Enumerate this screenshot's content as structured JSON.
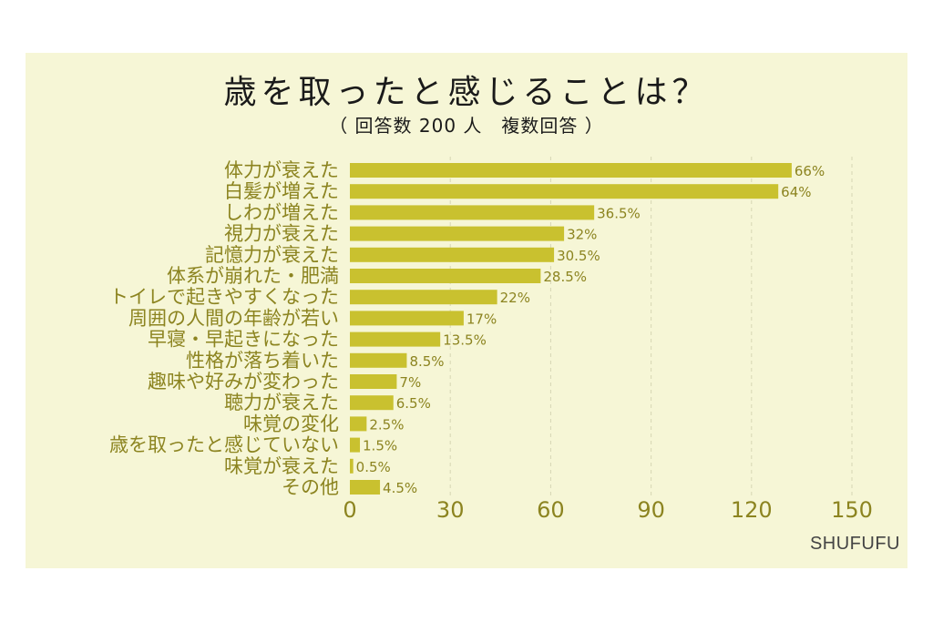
{
  "header": {
    "title": "歳を取ったと感じることは？",
    "subtitle": "（ 回答数 200 人　複数回答 ）"
  },
  "source": "SHUFUFU",
  "colors": {
    "background": "#f6f6d6",
    "bar": "#c9c12f",
    "text": "#8c8420"
  },
  "chart_data": {
    "type": "bar",
    "orientation": "horizontal",
    "title": "歳を取ったと感じることは？",
    "subtitle": "（ 回答数 200 人　複数回答 ）",
    "categories": [
      "体力が衰えた",
      "白髪が増えた",
      "しわが増えた",
      "視力が衰えた",
      "記憶力が衰えた",
      "体系が崩れた・肥満",
      "トイレで起きやすくなった",
      "周囲の人間の年齢が若い",
      "早寝・早起きになった",
      "性格が落ち着いた",
      "趣味や好みが変わった",
      "聴力が衰えた",
      "味覚の変化",
      "歳を取ったと感じていない",
      "味覚が衰えた",
      "その他"
    ],
    "values": [
      132,
      128,
      73,
      64,
      61,
      57,
      44,
      34,
      27,
      17,
      14,
      13,
      5,
      3,
      1,
      9
    ],
    "data_labels": [
      "66%",
      "64%",
      "36.5%",
      "32%",
      "30.5%",
      "28.5%",
      "22%",
      "17%",
      "13.5%",
      "8.5%",
      "7%",
      "6.5%",
      "2.5%",
      "1.5%",
      "0.5%",
      "4.5%"
    ],
    "xlim": [
      0,
      150
    ],
    "xticks": [
      "0",
      "30",
      "60",
      "90",
      "120",
      "150"
    ],
    "grid": "vertical-dashed",
    "legend": "none"
  }
}
